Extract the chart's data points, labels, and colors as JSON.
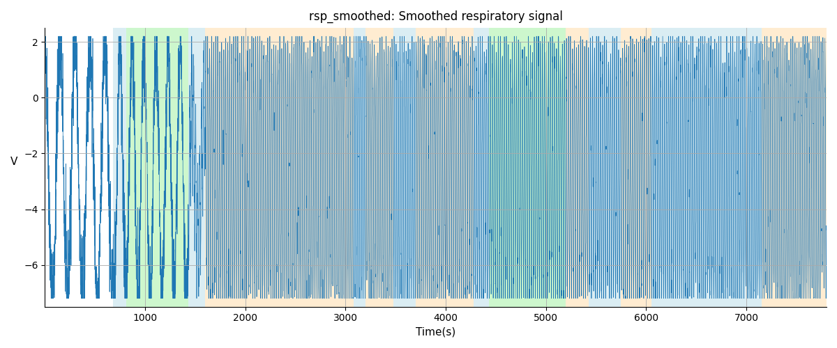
{
  "title": "rsp_smoothed: Smoothed respiratory signal",
  "xlabel": "Time(s)",
  "ylabel": "V",
  "xlim": [
    0,
    7800
  ],
  "ylim": [
    -7.5,
    2.5
  ],
  "yticks": [
    2,
    0,
    -2,
    -4,
    -6
  ],
  "xticks": [
    1000,
    2000,
    3000,
    4000,
    5000,
    6000,
    7000
  ],
  "signal_color": "#1f77b4",
  "background_color": "#ffffff",
  "grid_color": "#aaaaaa",
  "bands": [
    {
      "xmin": 680,
      "xmax": 810,
      "color": "#add8e6",
      "alpha": 0.45
    },
    {
      "xmin": 810,
      "xmax": 1430,
      "color": "#90ee90",
      "alpha": 0.45
    },
    {
      "xmin": 1430,
      "xmax": 1600,
      "color": "#add8e6",
      "alpha": 0.45
    },
    {
      "xmin": 1600,
      "xmax": 3080,
      "color": "#ffd59a",
      "alpha": 0.45
    },
    {
      "xmin": 3080,
      "xmax": 3200,
      "color": "#add8e6",
      "alpha": 0.45
    },
    {
      "xmin": 3200,
      "xmax": 3480,
      "color": "#ffd59a",
      "alpha": 0.45
    },
    {
      "xmin": 3480,
      "xmax": 3700,
      "color": "#add8e6",
      "alpha": 0.45
    },
    {
      "xmin": 3700,
      "xmax": 4280,
      "color": "#ffd59a",
      "alpha": 0.45
    },
    {
      "xmin": 4280,
      "xmax": 4430,
      "color": "#add8e6",
      "alpha": 0.45
    },
    {
      "xmin": 4430,
      "xmax": 5200,
      "color": "#90ee90",
      "alpha": 0.45
    },
    {
      "xmin": 5200,
      "xmax": 5430,
      "color": "#ffd59a",
      "alpha": 0.45
    },
    {
      "xmin": 5430,
      "xmax": 5750,
      "color": "#add8e6",
      "alpha": 0.45
    },
    {
      "xmin": 5750,
      "xmax": 6050,
      "color": "#ffd59a",
      "alpha": 0.45
    },
    {
      "xmin": 6050,
      "xmax": 7000,
      "color": "#add8e6",
      "alpha": 0.45
    },
    {
      "xmin": 7000,
      "xmax": 7150,
      "color": "#add8e6",
      "alpha": 0.45
    },
    {
      "xmin": 7150,
      "xmax": 7800,
      "color": "#ffd59a",
      "alpha": 0.45
    }
  ],
  "seed": 42,
  "total_time": 7800
}
